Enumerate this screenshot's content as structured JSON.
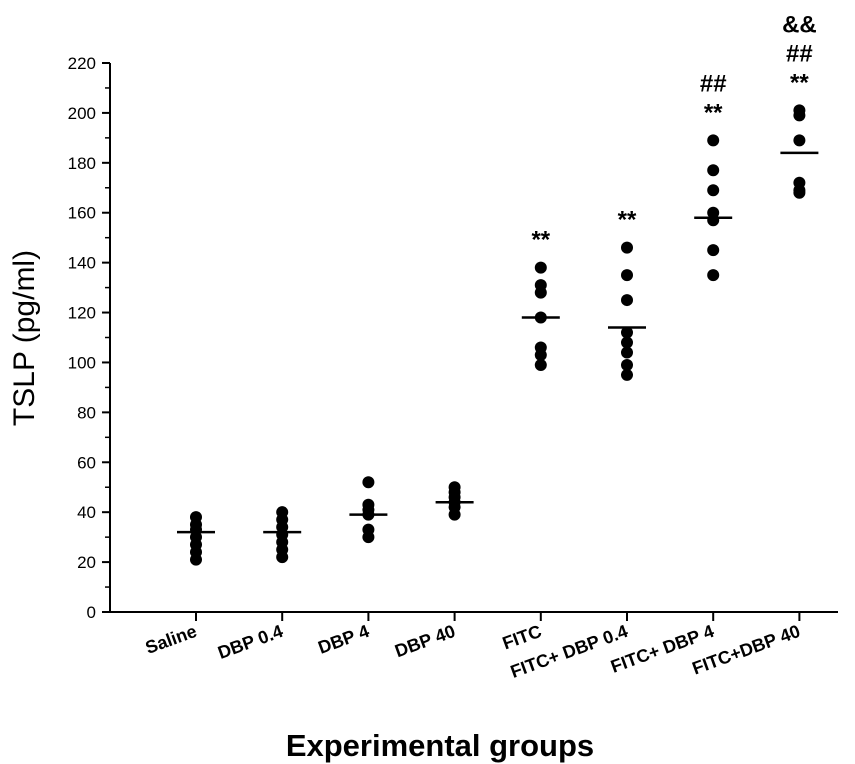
{
  "chart_data": {
    "type": "scatter",
    "xlabel": "Experimental groups",
    "ylabel": "TSLP (pg/ml)",
    "ylim": [
      0,
      220
    ],
    "yticks": [
      0,
      20,
      40,
      60,
      80,
      100,
      120,
      140,
      160,
      180,
      200,
      220
    ],
    "categories": [
      "Saline",
      "DBP 0.4",
      "DBP 4",
      "DBP 40",
      "FITC",
      "FITC+ DBP 0.4",
      "FITC+ DBP 4",
      "FITC+DBP 40"
    ],
    "points": [
      [
        38,
        35,
        33,
        30,
        27,
        24,
        21
      ],
      [
        40,
        37,
        34,
        31,
        28,
        25,
        22
      ],
      [
        52,
        43,
        41,
        39,
        33,
        30
      ],
      [
        50,
        48,
        46,
        44,
        42,
        39
      ],
      [
        138,
        131,
        128,
        118,
        106,
        103,
        99
      ],
      [
        146,
        135,
        125,
        112,
        108,
        104,
        99,
        95
      ],
      [
        189,
        177,
        169,
        160,
        157,
        145,
        135
      ],
      [
        201,
        199,
        189,
        172,
        169,
        168
      ]
    ],
    "means": [
      32,
      32,
      39,
      44,
      118,
      114,
      158,
      184
    ],
    "significance": [
      [],
      [],
      [],
      [],
      [
        "**"
      ],
      [
        "**"
      ],
      [
        "##",
        "**"
      ],
      [
        "&&",
        "##",
        "**"
      ]
    ]
  }
}
